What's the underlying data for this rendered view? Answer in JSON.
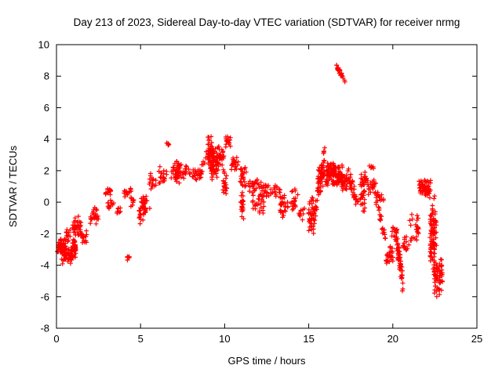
{
  "window": {
    "title": "Day 213 of 2023, Sidereal Day-to-day VTEC variation (SDTVAR) for receiver nrmg"
  },
  "colors": {
    "marker": "#ff0000",
    "axis": "#000000",
    "background": "#ffffff",
    "text": "#000000"
  },
  "chart_data": {
    "type": "scatter",
    "title": "Day 213 of 2023, Sidereal Day-to-day VTEC variation (SDTVAR) for receiver nrmg",
    "xlabel": "GPS time / hours",
    "ylabel": "SDTVAR / TECUs",
    "xlim": [
      0,
      25
    ],
    "ylim": [
      -8,
      10
    ],
    "xticks": [
      0,
      5,
      10,
      15,
      20,
      25
    ],
    "yticks": [
      -8,
      -6,
      -4,
      -2,
      0,
      2,
      4,
      6,
      8,
      10
    ],
    "grid": false,
    "legend": false,
    "marker": "plus",
    "marker_color": "#ff0000",
    "seed": 1337,
    "clusters": [
      {
        "x0": 0.05,
        "x1": 0.55,
        "y0": -3.4,
        "y1": -2.1,
        "n": 45
      },
      {
        "x0": 0.3,
        "x1": 0.95,
        "y0": -4.0,
        "y1": -2.6,
        "n": 50
      },
      {
        "x0": 0.55,
        "x1": 0.85,
        "y0": -2.6,
        "y1": -1.6,
        "n": 12
      },
      {
        "x0": 0.95,
        "x1": 1.15,
        "y0": -3.9,
        "y1": -1.0,
        "n": 45
      },
      {
        "x0": 1.05,
        "x1": 1.45,
        "y0": -2.4,
        "y1": -0.7,
        "n": 28
      },
      {
        "x0": 1.45,
        "x1": 1.8,
        "y0": -2.7,
        "y1": -1.7,
        "n": 16
      },
      {
        "x0": 2.0,
        "x1": 2.5,
        "y0": -1.5,
        "y1": -0.3,
        "n": 26
      },
      {
        "x0": 2.85,
        "x1": 3.25,
        "y0": 0.3,
        "y1": 1.1,
        "n": 13
      },
      {
        "x0": 3.0,
        "x1": 3.45,
        "y0": -0.7,
        "y1": 0.2,
        "n": 13
      },
      {
        "x0": 3.5,
        "x1": 3.8,
        "y0": -0.9,
        "y1": -0.3,
        "n": 8
      },
      {
        "x0": 4.0,
        "x1": 4.45,
        "y0": 0.2,
        "y1": 1.2,
        "n": 15
      },
      {
        "x0": 4.1,
        "x1": 4.35,
        "y0": -3.8,
        "y1": -3.3,
        "n": 7
      },
      {
        "x0": 4.35,
        "x1": 4.7,
        "y0": -0.3,
        "y1": 0.5,
        "n": 10
      },
      {
        "x0": 4.9,
        "x1": 5.3,
        "y0": -1.6,
        "y1": 0.4,
        "n": 30
      },
      {
        "x0": 5.15,
        "x1": 5.55,
        "y0": -0.5,
        "y1": 0.7,
        "n": 15
      },
      {
        "x0": 5.5,
        "x1": 5.95,
        "y0": 0.7,
        "y1": 1.9,
        "n": 17
      },
      {
        "x0": 6.05,
        "x1": 6.55,
        "y0": 1.1,
        "y1": 2.3,
        "n": 22
      },
      {
        "x0": 6.55,
        "x1": 6.75,
        "y0": 3.5,
        "y1": 3.9,
        "n": 5
      },
      {
        "x0": 6.8,
        "x1": 7.45,
        "y0": 1.3,
        "y1": 2.7,
        "n": 28
      },
      {
        "x0": 7.05,
        "x1": 7.3,
        "y0": 0.9,
        "y1": 2.6,
        "n": 20
      },
      {
        "x0": 7.5,
        "x1": 7.95,
        "y0": 1.5,
        "y1": 2.4,
        "n": 15
      },
      {
        "x0": 8.05,
        "x1": 8.6,
        "y0": 1.4,
        "y1": 2.2,
        "n": 18
      },
      {
        "shape": "diag",
        "x0": 8.5,
        "x1": 8.95,
        "y0": 1.7,
        "y1": 3.1,
        "j": 0.3,
        "n": 15
      },
      {
        "x0": 9.0,
        "x1": 9.35,
        "y0": 1.8,
        "y1": 4.6,
        "n": 65
      },
      {
        "x0": 9.2,
        "x1": 9.6,
        "y0": 1.2,
        "y1": 3.6,
        "n": 55
      },
      {
        "x0": 9.55,
        "x1": 10.0,
        "y0": 2.2,
        "y1": 3.7,
        "n": 28
      },
      {
        "x0": 9.9,
        "x1": 10.15,
        "y0": 0.1,
        "y1": 2.4,
        "n": 22
      },
      {
        "x0": 10.05,
        "x1": 10.4,
        "y0": 3.3,
        "y1": 4.3,
        "n": 15
      },
      {
        "x0": 10.4,
        "x1": 10.85,
        "y0": 1.9,
        "y1": 3.0,
        "n": 24
      },
      {
        "x0": 10.9,
        "x1": 11.35,
        "y0": 0.8,
        "y1": 2.4,
        "n": 24
      },
      {
        "x0": 10.95,
        "x1": 11.15,
        "y0": -1.4,
        "y1": 0.9,
        "n": 20
      },
      {
        "x0": 11.4,
        "x1": 11.95,
        "y0": 0.3,
        "y1": 1.8,
        "n": 24
      },
      {
        "x0": 11.6,
        "x1": 11.95,
        "y0": -0.6,
        "y1": 0.2,
        "n": 9
      },
      {
        "x0": 12.0,
        "x1": 12.4,
        "y0": -0.9,
        "y1": 1.6,
        "n": 28
      },
      {
        "x0": 12.4,
        "x1": 12.85,
        "y0": 0.2,
        "y1": 1.3,
        "n": 15
      },
      {
        "x0": 12.9,
        "x1": 13.3,
        "y0": 0.3,
        "y1": 1.2,
        "n": 13
      },
      {
        "x0": 13.3,
        "x1": 13.85,
        "y0": -1.2,
        "y1": 0.9,
        "n": 28
      },
      {
        "x0": 13.9,
        "x1": 14.35,
        "y0": -0.6,
        "y1": 1.0,
        "n": 18
      },
      {
        "x0": 14.4,
        "x1": 14.75,
        "y0": -1.2,
        "y1": -0.3,
        "n": 11
      },
      {
        "x0": 15.0,
        "x1": 15.3,
        "y0": -2.2,
        "y1": 0.9,
        "n": 34
      },
      {
        "shape": "diag",
        "x0": 15.25,
        "x1": 15.95,
        "y0": -1.5,
        "y1": 3.2,
        "j": 0.5,
        "n": 55
      },
      {
        "x0": 15.5,
        "x1": 16.05,
        "y0": 0.4,
        "y1": 2.6,
        "n": 28
      },
      {
        "x0": 16.05,
        "x1": 16.6,
        "y0": 1.0,
        "y1": 2.6,
        "n": 60
      },
      {
        "x0": 16.4,
        "x1": 17.0,
        "y0": 1.0,
        "y1": 2.5,
        "n": 60
      },
      {
        "x0": 16.9,
        "x1": 17.3,
        "y0": 0.7,
        "y1": 2.0,
        "n": 32
      },
      {
        "shape": "diag",
        "x0": 16.65,
        "x1": 17.15,
        "y0": 8.6,
        "y1": 7.7,
        "j": 0.15,
        "n": 24
      },
      {
        "shape": "diag",
        "x0": 17.3,
        "x1": 17.95,
        "y0": 2.0,
        "y1": -0.3,
        "j": 0.45,
        "n": 40
      },
      {
        "x0": 18.05,
        "x1": 18.35,
        "y0": -1.0,
        "y1": 2.2,
        "n": 28
      },
      {
        "x0": 18.1,
        "x1": 18.55,
        "y0": 0.9,
        "y1": 1.8,
        "n": 18
      },
      {
        "x0": 18.55,
        "x1": 19.0,
        "y0": 0.3,
        "y1": 1.6,
        "n": 22
      },
      {
        "x0": 18.6,
        "x1": 18.85,
        "y0": 2.0,
        "y1": 2.5,
        "n": 6
      },
      {
        "x0": 19.0,
        "x1": 19.45,
        "y0": -0.6,
        "y1": 0.9,
        "n": 18
      },
      {
        "shape": "diag",
        "x0": 19.15,
        "x1": 19.6,
        "y0": -0.5,
        "y1": -2.6,
        "j": 0.4,
        "n": 20
      },
      {
        "x0": 19.6,
        "x1": 20.05,
        "y0": -4.0,
        "y1": -2.7,
        "n": 26
      },
      {
        "x0": 19.9,
        "x1": 20.25,
        "y0": -2.4,
        "y1": -1.3,
        "n": 12
      },
      {
        "shape": "diag",
        "x0": 20.2,
        "x1": 20.6,
        "y0": -2.2,
        "y1": -5.2,
        "j": 0.7,
        "n": 55
      },
      {
        "x0": 20.6,
        "x1": 21.0,
        "y0": -3.3,
        "y1": -2.0,
        "n": 15
      },
      {
        "x0": 21.0,
        "x1": 21.55,
        "y0": -2.6,
        "y1": -0.7,
        "n": 24
      },
      {
        "x0": 21.55,
        "x1": 22.25,
        "y0": 0.3,
        "y1": 1.6,
        "n": 60
      },
      {
        "x0": 22.2,
        "x1": 22.6,
        "y0": -4.6,
        "y1": 0.9,
        "n": 85
      },
      {
        "x0": 22.45,
        "x1": 22.95,
        "y0": -6.2,
        "y1": -3.5,
        "n": 60
      }
    ]
  }
}
